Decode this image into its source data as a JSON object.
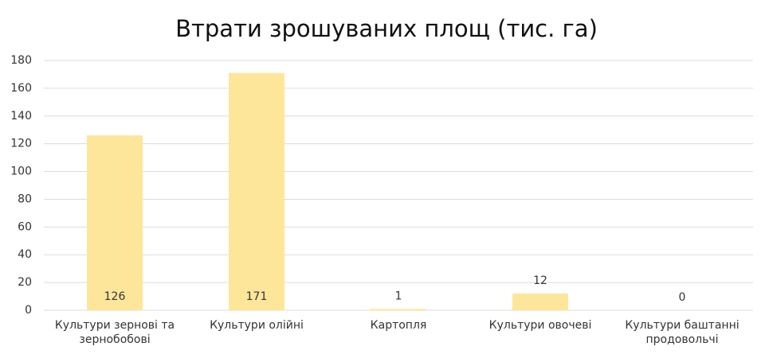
{
  "chart_data": {
    "type": "bar",
    "title": "Втрати зрошуваних площ (тис. га)",
    "categories": [
      "Культури зернові та зернобобові",
      "Культури олійні",
      "Картопля",
      "Культури овочеві",
      "Культури баштанні продовольчі"
    ],
    "values": [
      126,
      171,
      1,
      12,
      0
    ],
    "color": "#fde69a",
    "ylim": [
      0,
      180
    ],
    "yticks": [
      0,
      20,
      40,
      60,
      80,
      100,
      120,
      140,
      160,
      180
    ],
    "grid": true
  }
}
